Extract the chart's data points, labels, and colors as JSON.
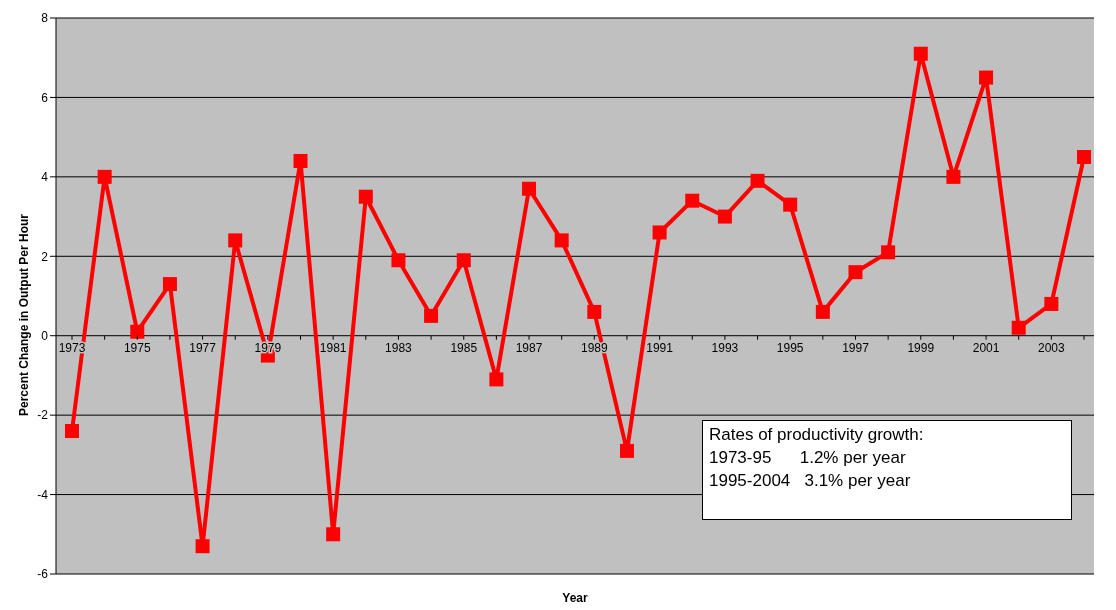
{
  "chart_data": {
    "type": "line",
    "xlabel": "Year",
    "ylabel": "Percent Change in Output Per Hour",
    "categories": [
      "1973",
      null,
      "1975",
      null,
      "1977",
      null,
      "1979",
      null,
      "1981",
      null,
      "1983",
      null,
      "1985",
      null,
      "1987",
      null,
      "1989",
      null,
      "1991",
      null,
      "1993",
      null,
      "1995",
      null,
      "1997",
      null,
      "1999",
      null,
      "2001",
      null,
      "2003",
      null
    ],
    "series": [
      {
        "color": "#ff0000",
        "values": [
          -2.4,
          4.0,
          0.1,
          1.3,
          -5.3,
          2.4,
          -0.5,
          4.4,
          -5.0,
          3.5,
          1.9,
          0.5,
          1.9,
          -1.1,
          3.7,
          2.4,
          0.6,
          -2.9,
          2.6,
          3.4,
          3.0,
          3.9,
          3.3,
          0.6,
          1.6,
          2.1,
          7.1,
          4.0,
          6.5,
          0.2,
          0.8,
          4.5
        ]
      }
    ],
    "ylim": [
      -6,
      8
    ],
    "yticks": [
      -6,
      -4,
      -2,
      0,
      2,
      4,
      6,
      8
    ],
    "grid": "y",
    "marker": "square",
    "line_style": "solid",
    "annotations": [
      "Rates of productivity growth:",
      "1973-95      1.2% per year",
      "1995-2004   3.1% per year"
    ]
  }
}
